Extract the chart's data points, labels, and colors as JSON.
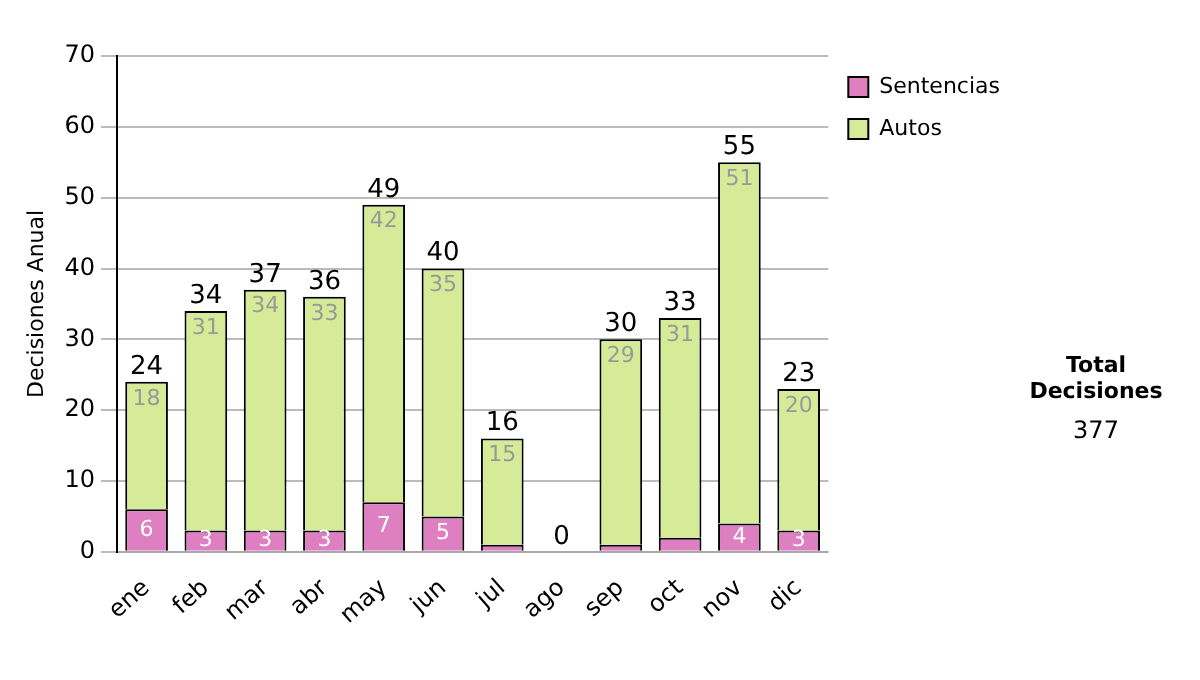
{
  "chart_data": {
    "type": "bar",
    "ylabel": "Decisiones Anual",
    "categories": [
      "ene",
      "feb",
      "mar",
      "abr",
      "may",
      "jun",
      "jul",
      "ago",
      "sep",
      "oct",
      "nov",
      "dic"
    ],
    "series": [
      {
        "name": "Sentencias",
        "color": "#dd7fc0",
        "values": [
          6,
          3,
          3,
          3,
          7,
          5,
          1,
          0,
          1,
          2,
          4,
          3
        ],
        "value_labels": [
          "6",
          "3",
          "3",
          "3",
          "7",
          "5",
          null,
          null,
          null,
          null,
          "4",
          "3"
        ]
      },
      {
        "name": "Autos",
        "color": "#d6eb98",
        "values": [
          18,
          31,
          34,
          33,
          42,
          35,
          15,
          0,
          29,
          31,
          51,
          20
        ],
        "value_labels": [
          "18",
          "31",
          "34",
          "33",
          "42",
          "35",
          "15",
          null,
          "29",
          "31",
          "51",
          "20"
        ]
      }
    ],
    "stacked": true,
    "ylim": [
      0,
      70
    ],
    "yticks": [
      0,
      10,
      20,
      30,
      40,
      50,
      60,
      70
    ],
    "grid": "y",
    "legend": "right",
    "totals": [
      "24",
      "34",
      "37",
      "36",
      "49",
      "40",
      "16",
      "0",
      "30",
      "33",
      "55",
      "23"
    ],
    "annotations": [
      "Total Decisiones",
      "377"
    ]
  }
}
